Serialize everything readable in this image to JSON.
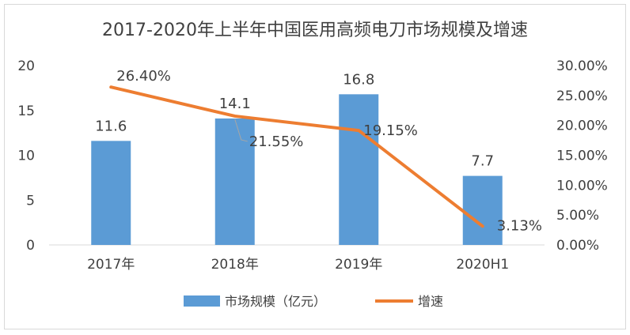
{
  "chart_data": {
    "type": "bar+line",
    "title": "2017-2020年上半年中国医用高频电刀市场规模及增速",
    "categories": [
      "2017年",
      "2018年",
      "2019年",
      "2020H1"
    ],
    "series": [
      {
        "name": "市场规模（亿元）",
        "type": "bar",
        "axis": "left",
        "color": "#5B9BD5",
        "values": [
          11.6,
          14.1,
          16.8,
          7.7
        ],
        "labels": [
          "11.6",
          "14.1",
          "16.8",
          "7.7"
        ]
      },
      {
        "name": "增速",
        "type": "line",
        "axis": "right",
        "color": "#ED7D31",
        "values": [
          26.4,
          21.55,
          19.15,
          3.13
        ],
        "labels": [
          "26.40%",
          "21.55%",
          "19.15%",
          "3.13%"
        ]
      }
    ],
    "left_axis": {
      "min": 0,
      "max": 20,
      "ticks": [
        "0",
        "5",
        "10",
        "15",
        "20"
      ]
    },
    "right_axis": {
      "min": 0,
      "max": 30,
      "ticks": [
        "0.00%",
        "5.00%",
        "10.00%",
        "15.00%",
        "20.00%",
        "25.00%",
        "30.00%"
      ]
    },
    "legend_position": "bottom",
    "grid": false
  }
}
